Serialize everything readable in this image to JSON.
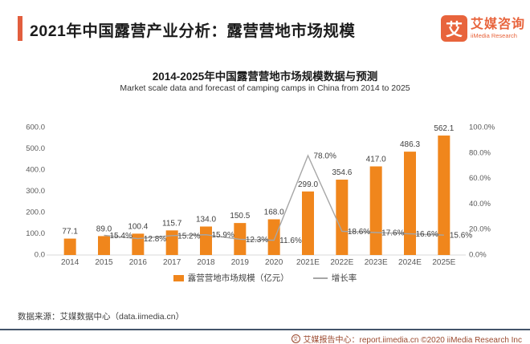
{
  "page": {
    "title": "2021年中国露营产业分析：露营营地市场规模"
  },
  "logo": {
    "icon_char": "艾",
    "name_cn": "艾媒咨询",
    "name_en": "iiMedia Research"
  },
  "chart_data": {
    "type": "bar",
    "title": "2014-2025年中国露营营地市场规模数据与预测",
    "subtitle": "Market scale data and forecast of camping camps in China from 2014 to 2025",
    "categories": [
      "2014",
      "2015",
      "2016",
      "2017",
      "2018",
      "2019",
      "2020",
      "2021E",
      "2022E",
      "2023E",
      "2024E",
      "2025E"
    ],
    "series": [
      {
        "name": "露营营地市场规模（亿元）",
        "type": "bar",
        "color": "#F0861C",
        "values": [
          77.1,
          89.0,
          100.4,
          115.7,
          134.0,
          150.5,
          168.0,
          299.0,
          354.6,
          417.0,
          486.3,
          562.1
        ],
        "labels": [
          "77.1",
          "89.0",
          "100.4",
          "115.7",
          "134.0",
          "150.5",
          "168.0",
          "299.0",
          "354.6",
          "417.0",
          "486.3",
          "562.1"
        ]
      },
      {
        "name": "增长率",
        "type": "line",
        "color": "#A6A6A6",
        "values": [
          null,
          15.4,
          12.8,
          15.2,
          15.9,
          12.3,
          11.6,
          78.0,
          18.6,
          17.6,
          16.6,
          15.6
        ],
        "labels": [
          null,
          "15.4%",
          "12.8%",
          "15.2%",
          "15.9%",
          "12.3%",
          "11.6%",
          "78.0%",
          "18.6%",
          "17.6%",
          "16.6%",
          "15.6%"
        ]
      }
    ],
    "left_axis": {
      "min": 0,
      "max": 600,
      "step": 100,
      "tick_labels": [
        "0.0",
        "100.0",
        "200.0",
        "300.0",
        "400.0",
        "500.0",
        "600.0"
      ]
    },
    "right_axis": {
      "min": 0,
      "max": 100,
      "step": 20,
      "tick_labels": [
        "0.0%",
        "20.0%",
        "40.0%",
        "60.0%",
        "80.0%",
        "100.0%"
      ]
    },
    "grid": false,
    "legend_position": "bottom",
    "legend": [
      {
        "swatch": "bar",
        "color": "#F0861C",
        "label": "露营营地市场规模（亿元）"
      },
      {
        "swatch": "line",
        "color": "#A6A6A6",
        "label": "增长率"
      }
    ],
    "text_colors": {
      "axis": "#595959",
      "data_label": "#404040"
    },
    "baseline_color": "#D9D9D9"
  },
  "source_note": "数据来源：艾媒数据中心（data.iimedia.cn）",
  "footer": {
    "icon_char": "艾",
    "text": "艾媒报告中心：report.iimedia.cn  ©2020  iiMedia Research  Inc"
  }
}
